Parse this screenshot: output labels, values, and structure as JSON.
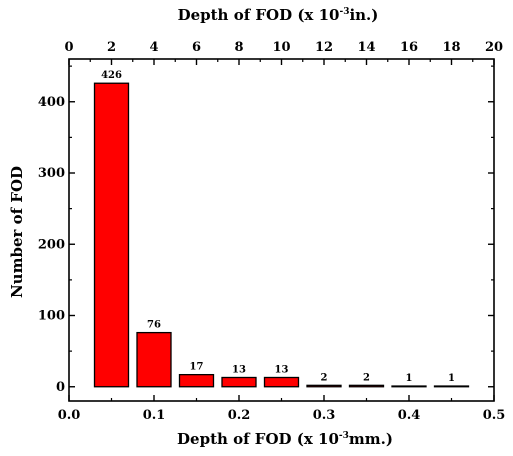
{
  "chart_data": {
    "type": "bar",
    "x_bottom_label_parts": [
      "Depth of FOD (x 10",
      "-3",
      "mm.)"
    ],
    "x_top_label_parts": [
      "Depth of FOD (x 10",
      "-3",
      "in.)"
    ],
    "ylabel": "Number of FOD",
    "bottom_axis_range": [
      0.0,
      0.5
    ],
    "top_axis_range": [
      0,
      20
    ],
    "ylim": [
      -20,
      460
    ],
    "bottom_ticks": [
      "0.0",
      "0.1",
      "0.2",
      "0.3",
      "0.4",
      "0.5"
    ],
    "top_ticks": [
      "0",
      "2",
      "4",
      "6",
      "8",
      "10",
      "12",
      "14",
      "16",
      "18",
      "20"
    ],
    "y_ticks": [
      "0",
      "100",
      "200",
      "300",
      "400"
    ],
    "bars": [
      {
        "x_start": 0.03,
        "x_end": 0.07,
        "value": 426,
        "label": "426"
      },
      {
        "x_start": 0.08,
        "x_end": 0.12,
        "value": 76,
        "label": "76"
      },
      {
        "x_start": 0.13,
        "x_end": 0.17,
        "value": 17,
        "label": "17"
      },
      {
        "x_start": 0.18,
        "x_end": 0.22,
        "value": 13,
        "label": "13"
      },
      {
        "x_start": 0.23,
        "x_end": 0.27,
        "value": 13,
        "label": "13"
      },
      {
        "x_start": 0.28,
        "x_end": 0.32,
        "value": 2,
        "label": "2"
      },
      {
        "x_start": 0.33,
        "x_end": 0.37,
        "value": 2,
        "label": "2"
      },
      {
        "x_start": 0.38,
        "x_end": 0.42,
        "value": 1,
        "label": "1"
      },
      {
        "x_start": 0.43,
        "x_end": 0.47,
        "value": 1,
        "label": "1"
      }
    ],
    "bar_color": "#ff0000",
    "grid": false,
    "legend": "none"
  }
}
